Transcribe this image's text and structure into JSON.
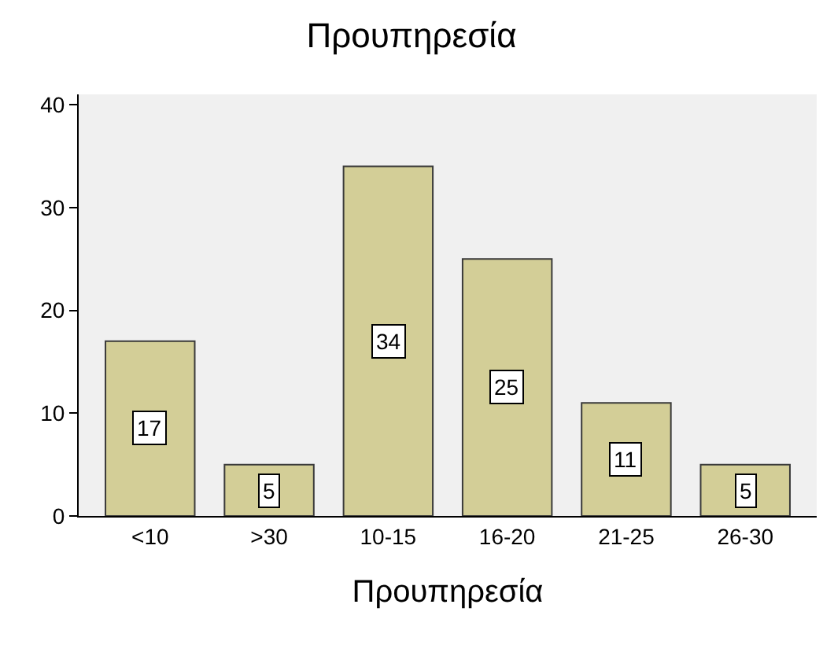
{
  "chart_data": {
    "type": "bar",
    "title": "Προυπηρεσία",
    "xlabel": "Προυπηρεσία",
    "categories": [
      "<10",
      ">30",
      "10-15",
      "16-20",
      "21-25",
      "26-30"
    ],
    "values": [
      17,
      5,
      34,
      25,
      11,
      5
    ],
    "color": "#d3ce97",
    "ylim": [
      0,
      41
    ],
    "yticks": [
      0,
      10,
      20,
      30,
      40
    ],
    "grid": false,
    "data_labels": true
  }
}
